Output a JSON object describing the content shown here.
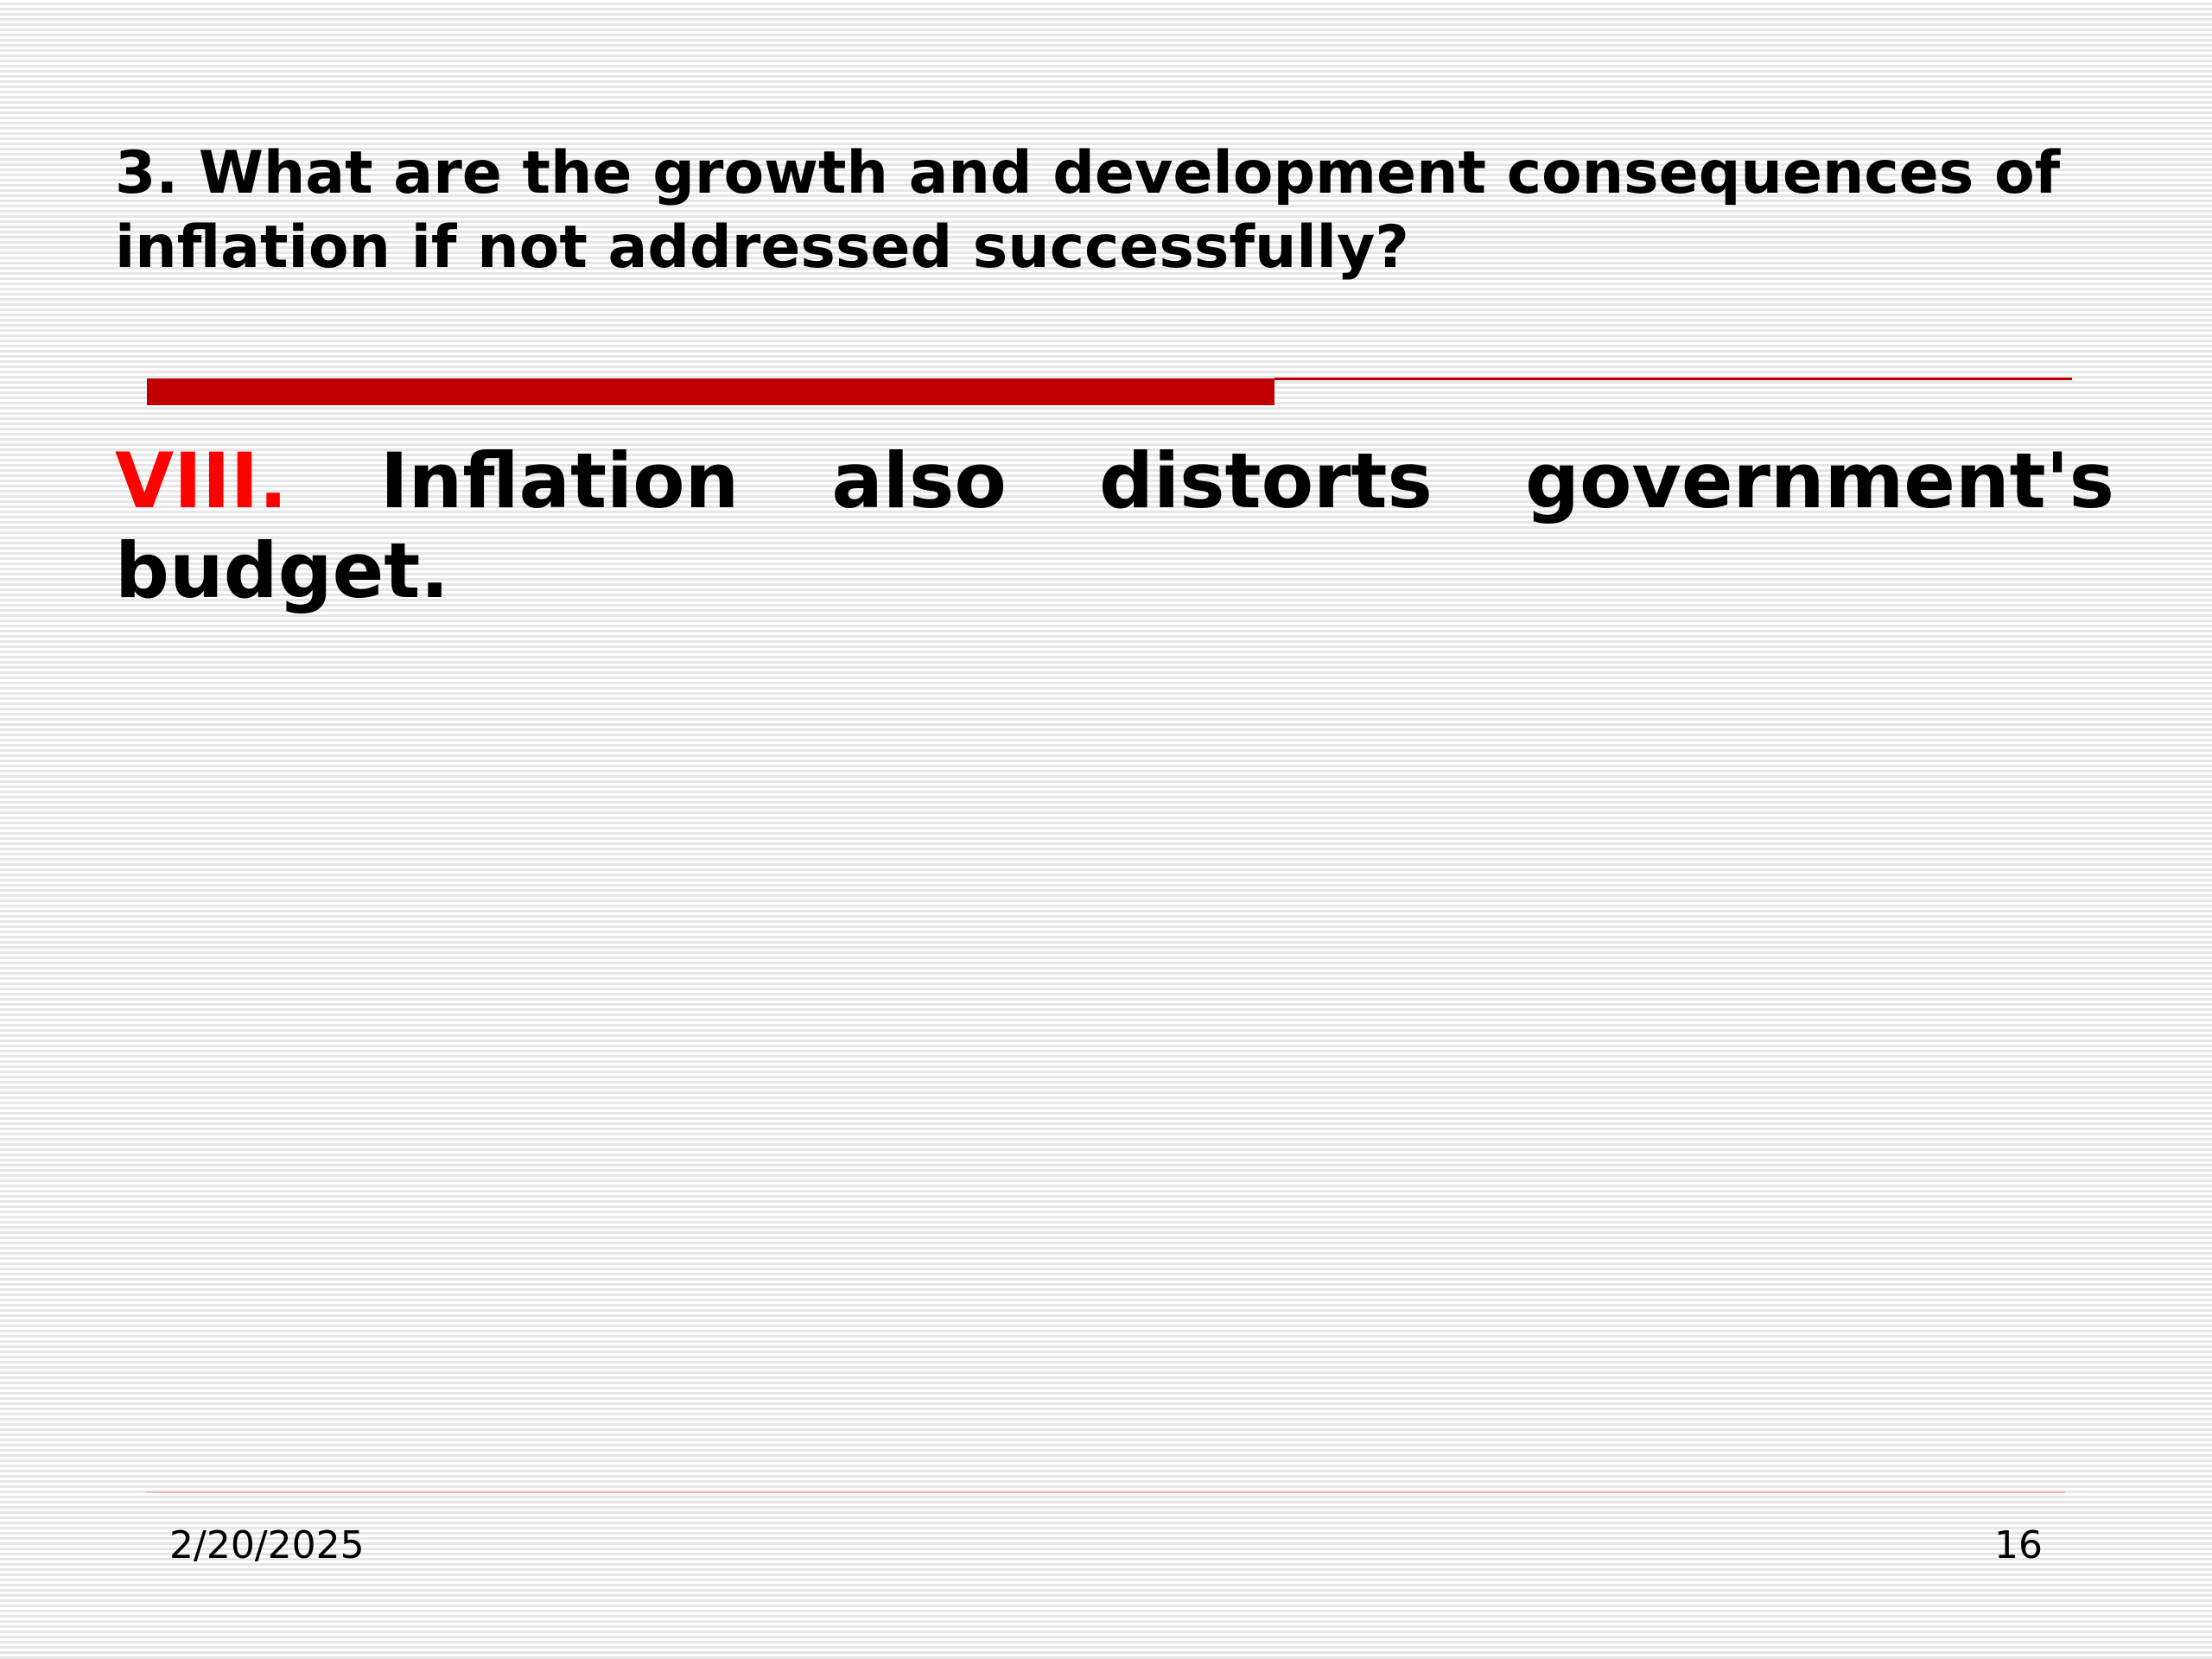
{
  "slide": {
    "title": "3. What are the growth and development consequences of  inflation if not addressed successfully?",
    "point": {
      "numeral": "VIII.",
      "text": "Inflation also distorts government's budget."
    },
    "footer": {
      "date": "2/20/2025",
      "page_number": "16"
    }
  },
  "colors": {
    "accent_red": "#c00000",
    "numeral_red": "#ff0000",
    "text": "#000000"
  }
}
